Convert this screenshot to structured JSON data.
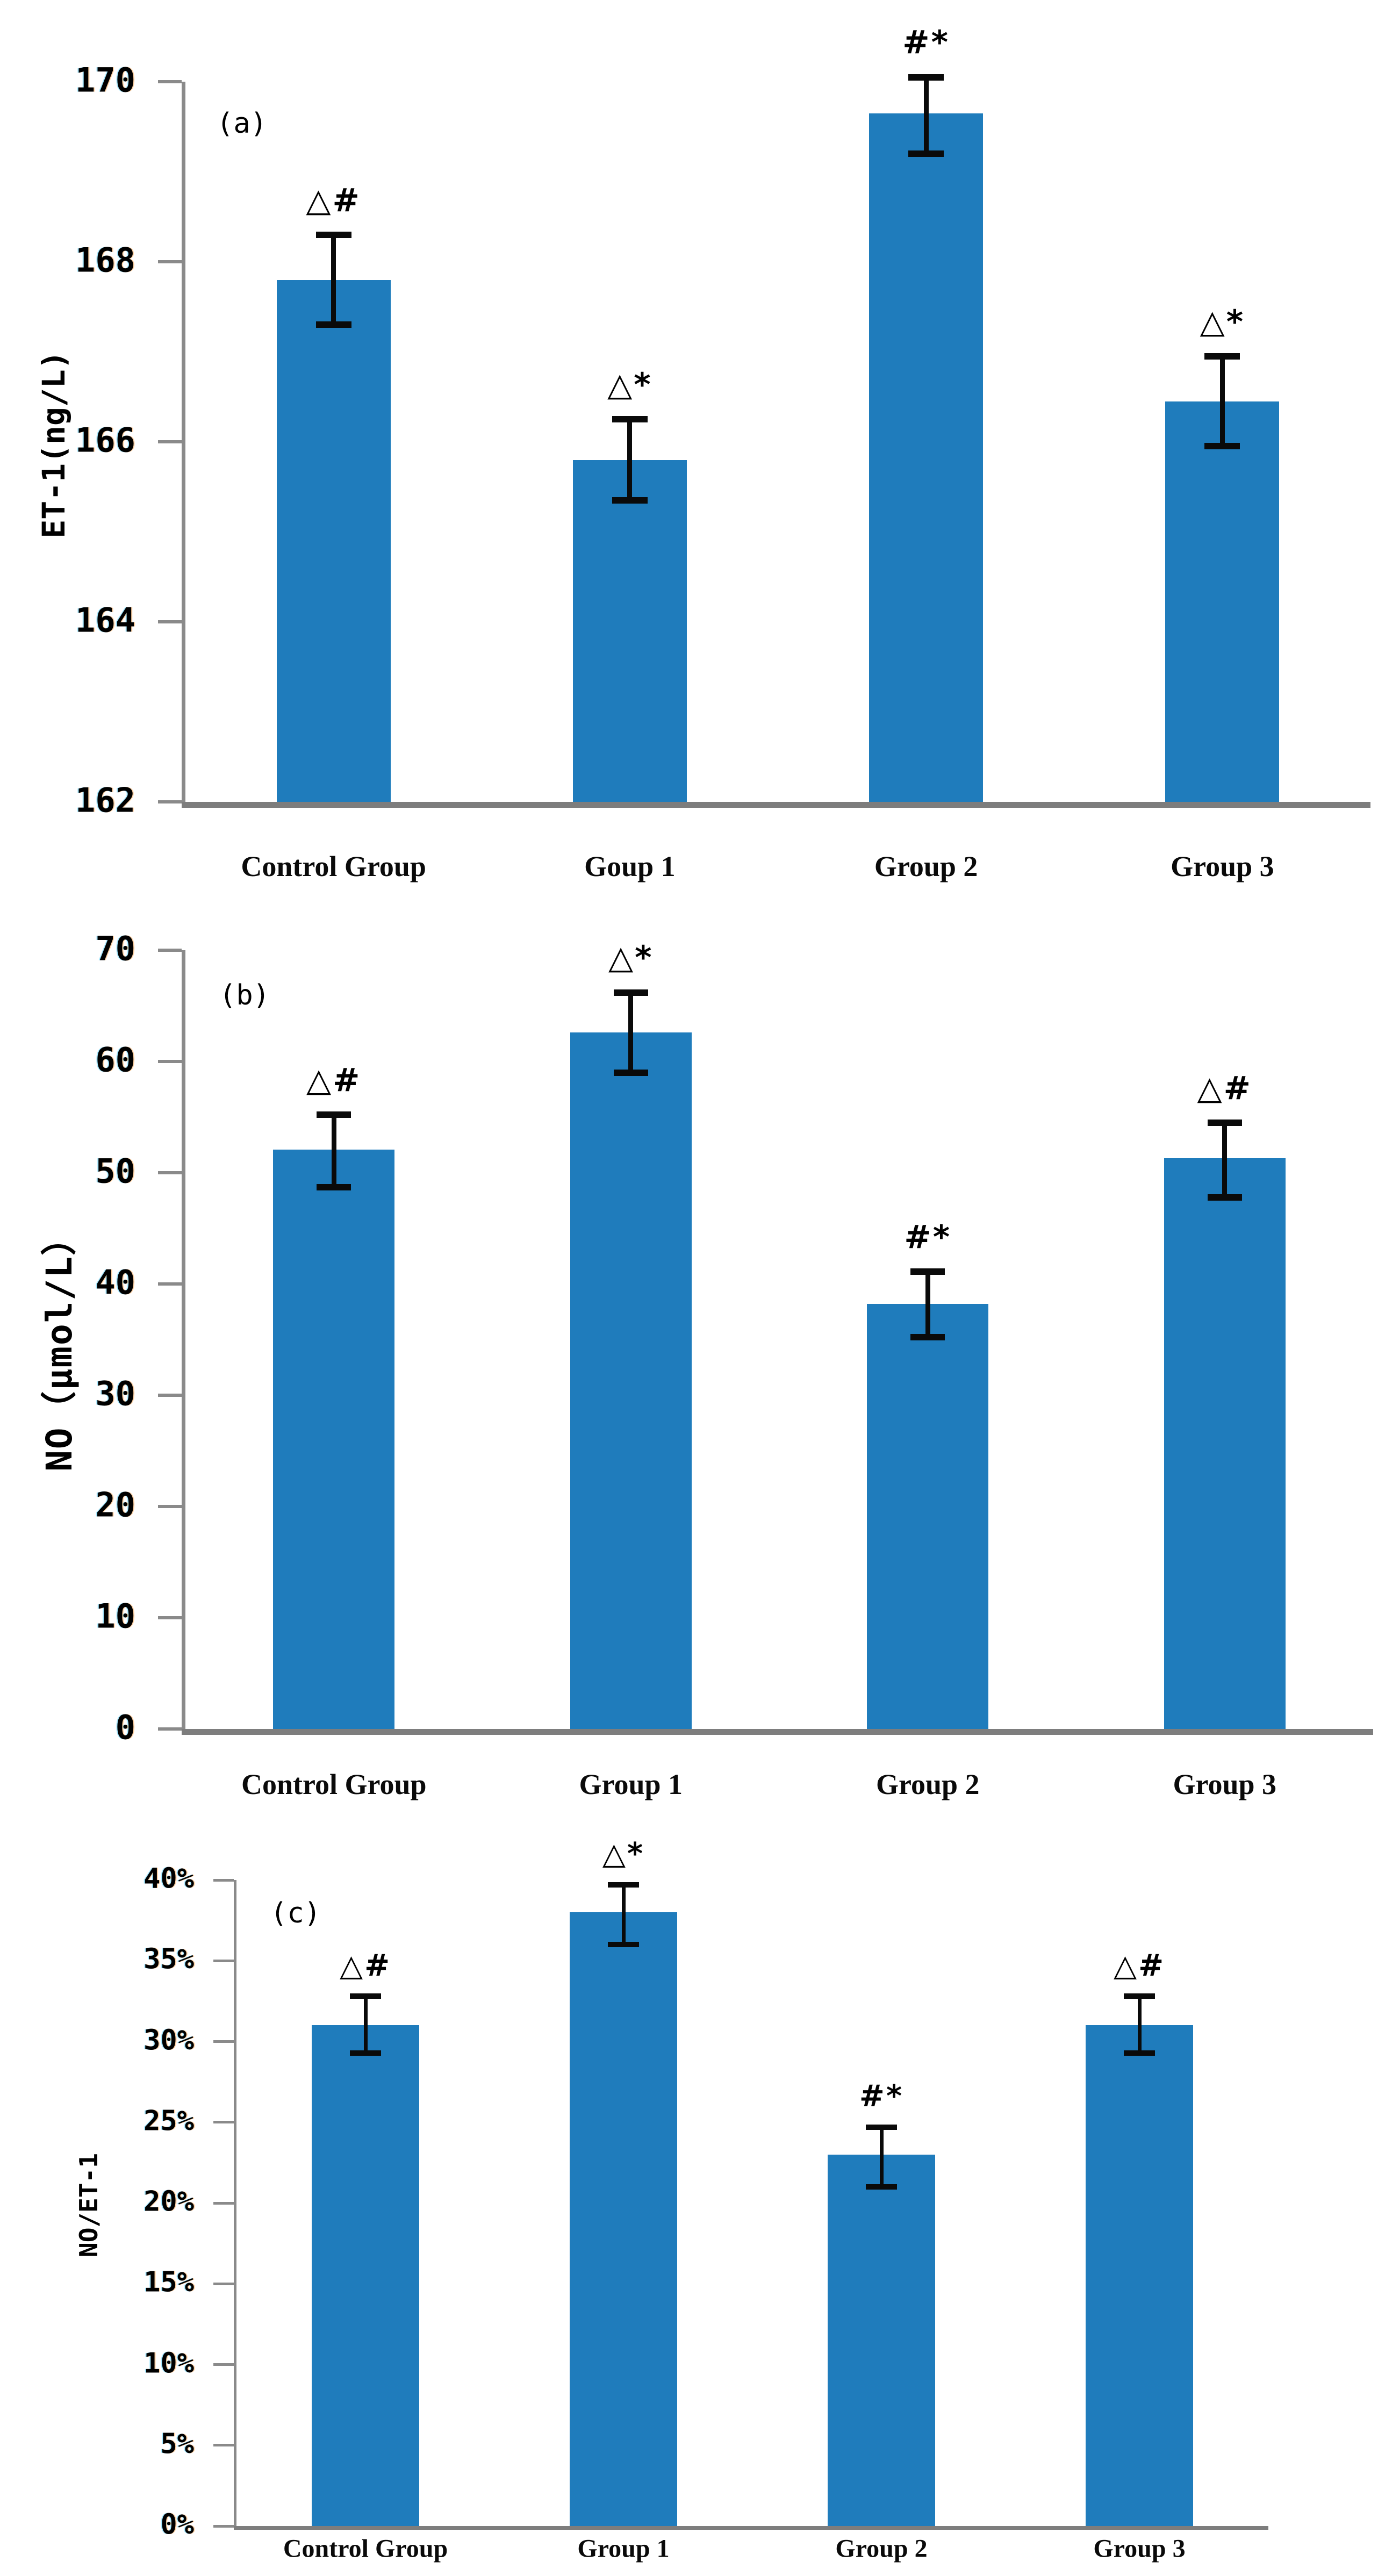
{
  "figure": {
    "background": "#ffffff",
    "bar_color": "#1f7cbc",
    "axis_color": "#8a8a8a",
    "baseline_color": "#7d7d7d",
    "error_color": "#0a0a0a",
    "text_color": "#000000"
  },
  "chart_data": [
    {
      "type": "bar",
      "panel_label": "(a)",
      "ylabel": "ET-1(ng/L)",
      "xlabel": "",
      "ylim": [
        162,
        170
      ],
      "grid": false,
      "legend": "none",
      "yticks": [
        {
          "value": 170,
          "label": "170"
        },
        {
          "value": 168,
          "label": "168"
        },
        {
          "value": 166,
          "label": "166"
        },
        {
          "value": 164,
          "label": "164"
        },
        {
          "value": 162,
          "label": "162"
        }
      ],
      "categories": [
        "Control Group",
        "Goup 1",
        "Group 2",
        "Group 3"
      ],
      "values": [
        167.8,
        165.8,
        169.65,
        166.45
      ],
      "error_low": [
        167.3,
        165.35,
        169.2,
        165.95
      ],
      "error_high": [
        168.3,
        166.25,
        170.05,
        166.95
      ],
      "annotations": [
        "△#",
        "△*",
        "#*",
        "△*"
      ]
    },
    {
      "type": "bar",
      "panel_label": "(b)",
      "ylabel": "NO（μmol/L）",
      "xlabel": "",
      "ylim": [
        0,
        70
      ],
      "grid": false,
      "legend": "none",
      "yticks": [
        {
          "value": 70,
          "label": "70"
        },
        {
          "value": 60,
          "label": "60"
        },
        {
          "value": 50,
          "label": "50"
        },
        {
          "value": 40,
          "label": "40"
        },
        {
          "value": 30,
          "label": "30"
        },
        {
          "value": 20,
          "label": "20"
        },
        {
          "value": 10,
          "label": "10"
        },
        {
          "value": 0,
          "label": "0"
        }
      ],
      "categories": [
        "Control Group",
        "Group 1",
        "Group 2",
        "Group 3"
      ],
      "values": [
        52.1,
        62.6,
        38.2,
        51.3
      ],
      "error_low": [
        48.7,
        59.0,
        35.2,
        47.8
      ],
      "error_high": [
        55.2,
        66.2,
        41.1,
        54.5
      ],
      "annotations": [
        "△#",
        "△*",
        "#*",
        "△#"
      ]
    },
    {
      "type": "bar",
      "panel_label": "(c)",
      "ylabel": "NO/ET-1",
      "xlabel": "",
      "ylim": [
        0,
        0.4
      ],
      "grid": false,
      "legend": "none",
      "yticks": [
        {
          "value": 0.4,
          "label": "40%"
        },
        {
          "value": 0.35,
          "label": "35%"
        },
        {
          "value": 0.3,
          "label": "30%"
        },
        {
          "value": 0.25,
          "label": "25%"
        },
        {
          "value": 0.2,
          "label": "20%"
        },
        {
          "value": 0.15,
          "label": "15%"
        },
        {
          "value": 0.1,
          "label": "10%"
        },
        {
          "value": 0.05,
          "label": "5%"
        },
        {
          "value": 0.0,
          "label": "0%"
        }
      ],
      "categories": [
        "Control Group",
        "Group 1",
        "Group 2",
        "Group 3"
      ],
      "values": [
        0.31,
        0.38,
        0.23,
        0.31
      ],
      "error_low": [
        0.293,
        0.36,
        0.21,
        0.293
      ],
      "error_high": [
        0.328,
        0.397,
        0.247,
        0.328
      ],
      "annotations": [
        "△#",
        "△*",
        "#*",
        "△#"
      ]
    }
  ]
}
